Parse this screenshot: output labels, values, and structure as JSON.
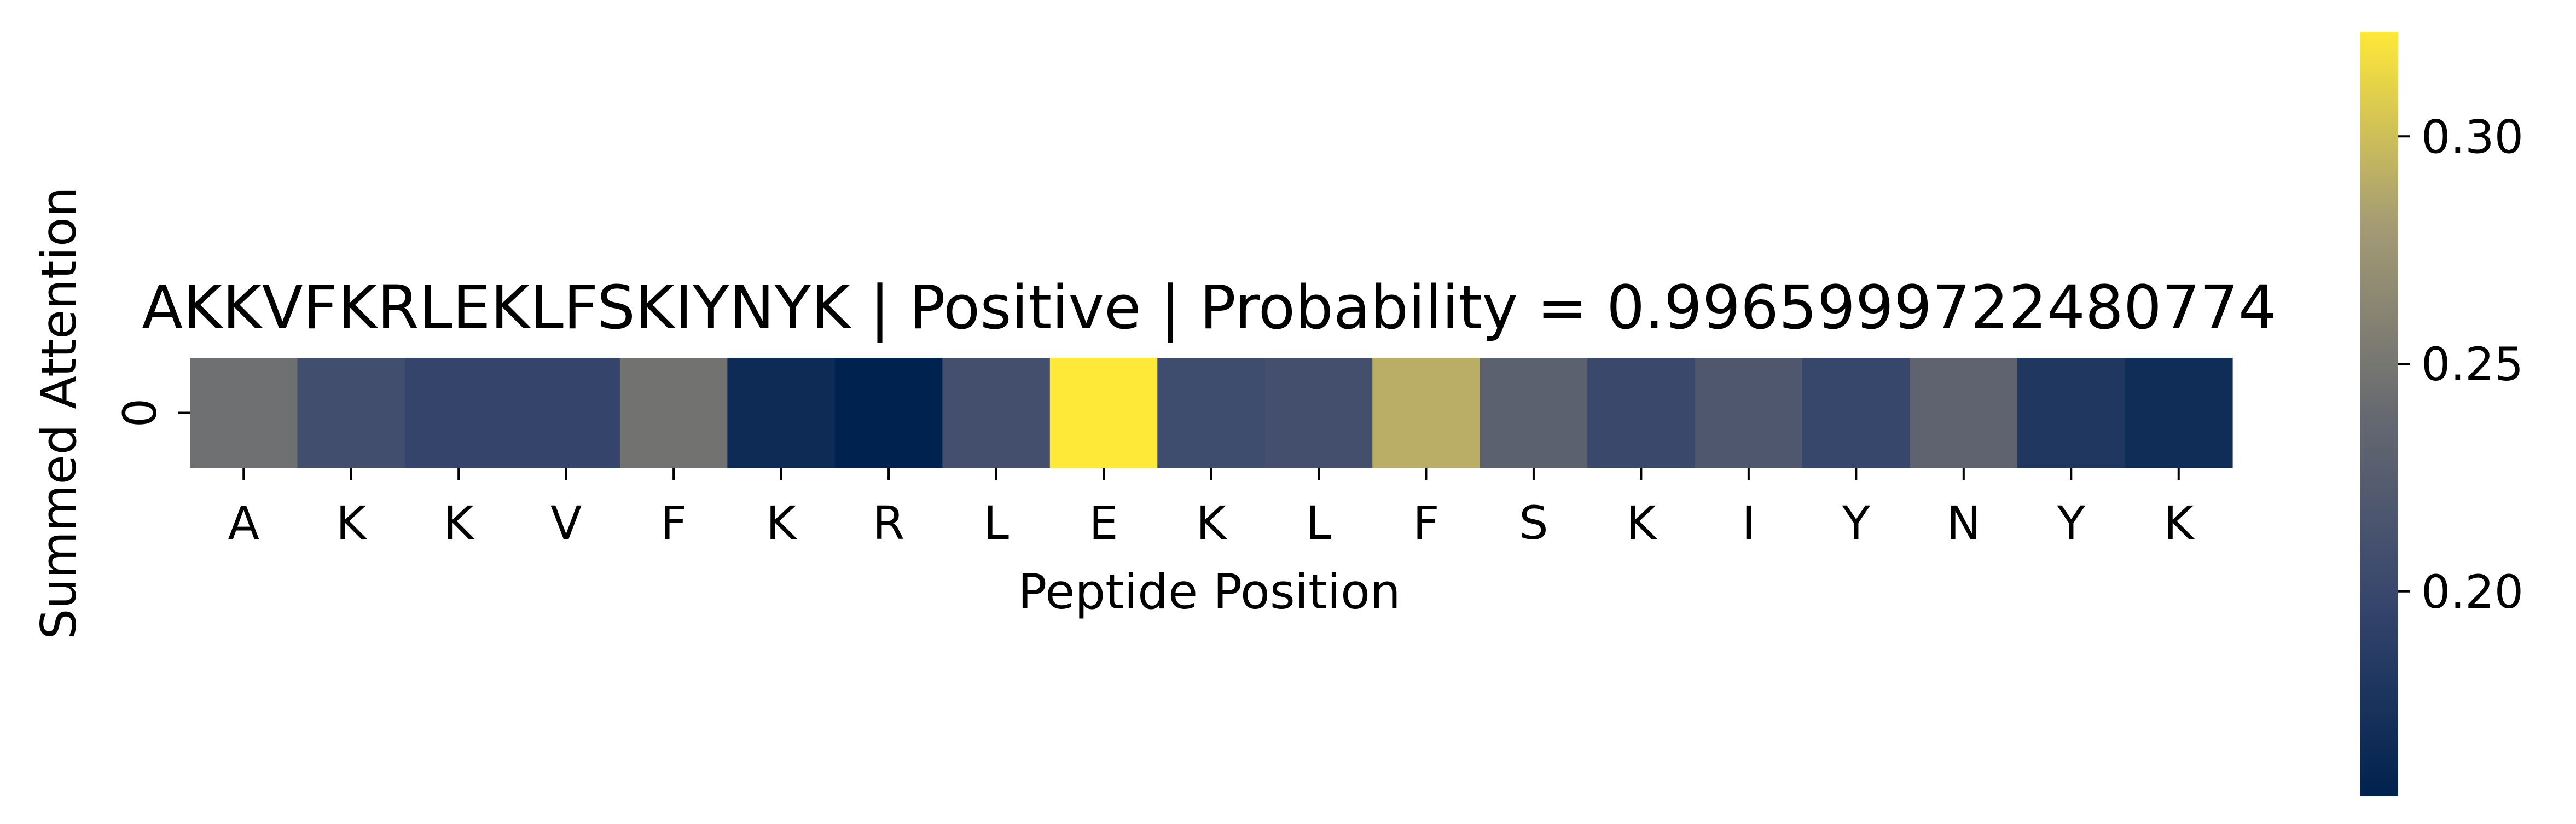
{
  "chart_data": {
    "type": "heatmap",
    "title": "AKKVFKRLEKLFSKIYNYK | Positive | Probability = 0.9965999722480774",
    "xlabel": "Peptide Position",
    "ylabel": "Summed Attention",
    "x_tick_labels": [
      "A",
      "K",
      "K",
      "V",
      "F",
      "K",
      "R",
      "L",
      "E",
      "K",
      "L",
      "F",
      "S",
      "K",
      "I",
      "Y",
      "N",
      "Y",
      "K"
    ],
    "y_tick_labels": [
      "0"
    ],
    "values": [
      [
        0.245,
        0.208,
        0.196,
        0.196,
        0.247,
        0.166,
        0.155,
        0.209,
        0.323,
        0.205,
        0.209,
        0.291,
        0.23,
        0.201,
        0.218,
        0.199,
        0.232,
        0.18,
        0.168
      ]
    ],
    "colormap": "cividis",
    "colorbar": {
      "min": 0.155,
      "max": 0.323,
      "ticks": [
        0.2,
        0.25,
        0.3
      ],
      "tick_labels": [
        "0.20",
        "0.25",
        "0.30"
      ]
    },
    "grid": false,
    "legend": "colorbar-right"
  }
}
